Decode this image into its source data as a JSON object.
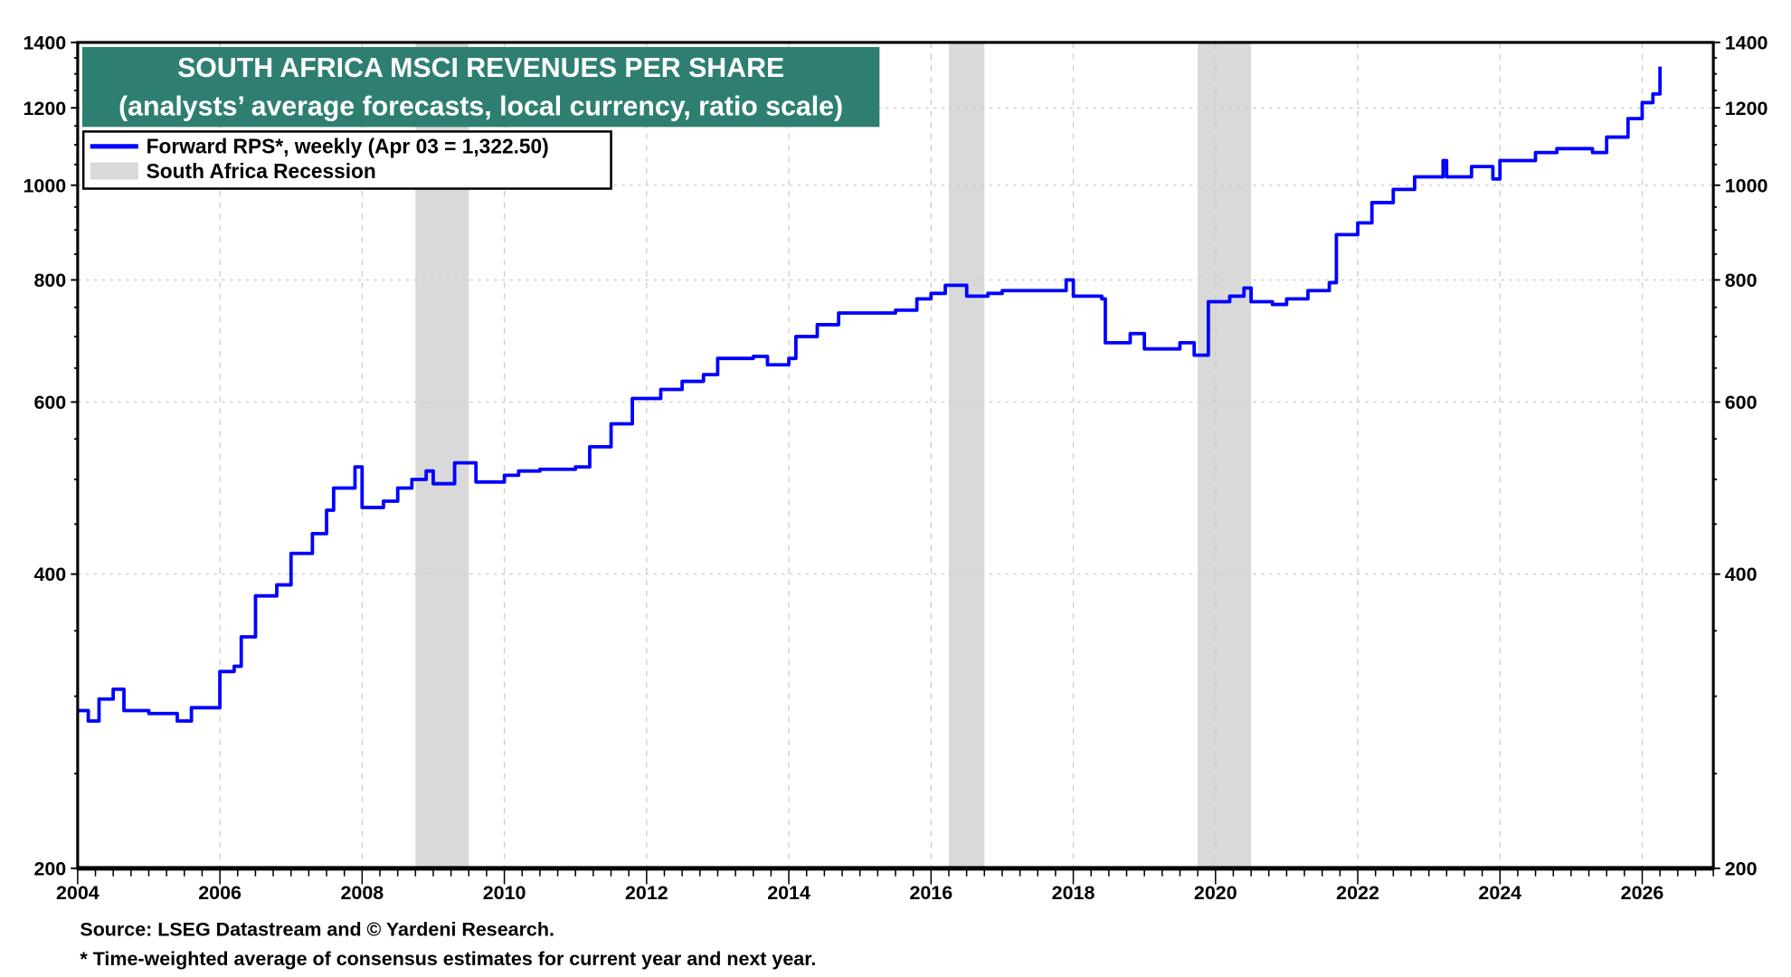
{
  "chart_data": {
    "type": "line",
    "title": "SOUTH AFRICA MSCI REVENUES PER SHARE",
    "subtitle": "(analysts’ average forecasts, local currency, ratio scale)",
    "y_scale": "log",
    "ylim": [
      200,
      1400
    ],
    "xlim": [
      2004,
      2027
    ],
    "y_ticks": [
      200,
      400,
      600,
      800,
      1000,
      1200,
      1400
    ],
    "x_ticks": [
      "2004",
      "2006",
      "2008",
      "2010",
      "2012",
      "2014",
      "2016",
      "2018",
      "2020",
      "2022",
      "2024",
      "2026"
    ],
    "grid": true,
    "legend_placement": "top-left",
    "colors": {
      "series": "#0000ff",
      "recession": "#d9d9d9",
      "title_bg": "#2e7f71"
    },
    "legend": {
      "series_label": "Forward RPS*, weekly (Apr 03 = 1,322.50)",
      "recession_label": "South Africa Recession"
    },
    "recessions": [
      [
        2008.75,
        2009.5
      ],
      [
        2016.25,
        2016.75
      ],
      [
        2019.75,
        2020.5
      ]
    ],
    "series": [
      {
        "name": "Forward RPS*, weekly (Apr 03 = 1,322.50)",
        "x": [
          2004.0,
          2004.15,
          2004.3,
          2004.5,
          2004.65,
          2005.0,
          2005.4,
          2005.6,
          2006.0,
          2006.2,
          2006.3,
          2006.5,
          2006.8,
          2007.0,
          2007.3,
          2007.5,
          2007.6,
          2007.9,
          2008.0,
          2008.3,
          2008.5,
          2008.7,
          2008.9,
          2009.0,
          2009.3,
          2009.6,
          2010.0,
          2010.2,
          2010.5,
          2011.0,
          2011.2,
          2011.5,
          2011.8,
          2012.2,
          2012.5,
          2012.8,
          2013.0,
          2013.5,
          2013.7,
          2014.0,
          2014.1,
          2014.4,
          2014.7,
          2015.0,
          2015.5,
          2015.8,
          2016.0,
          2016.2,
          2016.5,
          2016.8,
          2017.0,
          2017.5,
          2017.9,
          2018.0,
          2018.4,
          2018.45,
          2018.8,
          2019.0,
          2019.5,
          2019.7,
          2019.9,
          2020.2,
          2020.4,
          2020.5,
          2020.8,
          2021.0,
          2021.3,
          2021.6,
          2021.7,
          2022.0,
          2022.2,
          2022.5,
          2022.8,
          2023.2,
          2023.25,
          2023.6,
          2023.9,
          2024.0,
          2024.5,
          2024.8,
          2025.0,
          2025.3,
          2025.5,
          2025.8,
          2026.0,
          2026.15,
          2026.25
        ],
        "values": [
          290,
          283,
          298,
          305,
          290,
          288,
          283,
          292,
          318,
          322,
          345,
          380,
          390,
          420,
          440,
          465,
          490,
          515,
          468,
          475,
          490,
          500,
          510,
          495,
          520,
          497,
          505,
          510,
          512,
          515,
          540,
          570,
          605,
          618,
          630,
          640,
          665,
          668,
          655,
          665,
          700,
          720,
          740,
          740,
          745,
          765,
          775,
          790,
          770,
          775,
          780,
          780,
          800,
          770,
          765,
          690,
          705,
          680,
          690,
          670,
          760,
          770,
          785,
          760,
          755,
          765,
          780,
          795,
          890,
          915,
          960,
          990,
          1020,
          1060,
          1020,
          1045,
          1015,
          1060,
          1080,
          1090,
          1090,
          1080,
          1120,
          1170,
          1215,
          1240,
          1322.5
        ]
      }
    ]
  },
  "footer": {
    "source": "Source: LSEG Datastream and © Yardeni Research.",
    "note": "* Time-weighted average of consensus estimates for current year and next year."
  }
}
